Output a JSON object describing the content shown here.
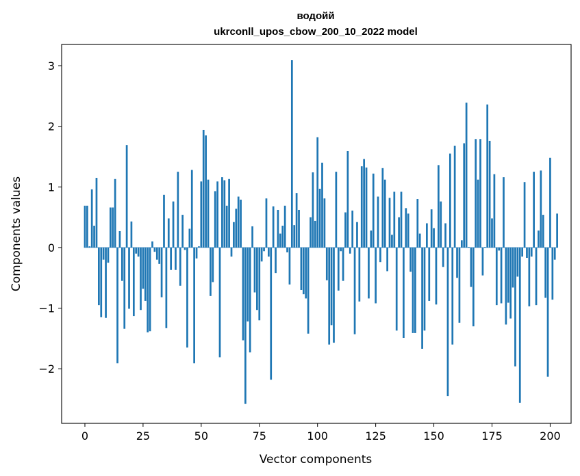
{
  "chart_data": {
    "type": "bar",
    "title": "водойй",
    "subtitle": "ukrconll_upos_cbow_200_10_2022 model",
    "xlabel": "Vector components",
    "ylabel": "Components values",
    "xlim": [
      -10,
      209
    ],
    "ylim": [
      -2.9,
      3.35
    ],
    "xticks": [
      0,
      25,
      50,
      75,
      100,
      125,
      150,
      175,
      200
    ],
    "yticks": [
      -2,
      -1,
      0,
      1,
      2,
      3
    ],
    "ytick_labels": [
      "−2",
      "−1",
      "0",
      "1",
      "2",
      "3"
    ],
    "grid": false,
    "color": "#1f77b4",
    "values": [
      0.69,
      0.69,
      0.02,
      0.96,
      0.36,
      1.15,
      -0.95,
      -1.15,
      -0.2,
      -1.16,
      -0.25,
      0.66,
      0.66,
      1.13,
      -1.91,
      0.27,
      -0.55,
      -1.34,
      1.69,
      -1.01,
      0.43,
      -1.13,
      -0.1,
      -0.15,
      -1.03,
      -0.68,
      -0.88,
      -1.4,
      -1.38,
      0.1,
      -0.07,
      -0.2,
      -0.27,
      -0.82,
      0.87,
      -1.33,
      0.48,
      -0.37,
      0.76,
      -0.37,
      1.25,
      -0.63,
      0.54,
      -0.04,
      -1.65,
      0.31,
      1.28,
      -1.91,
      -0.18,
      0.02,
      1.09,
      1.94,
      1.85,
      1.12,
      -0.8,
      -0.57,
      0.93,
      1.09,
      -1.81,
      1.16,
      1.11,
      0.69,
      1.13,
      -0.15,
      0.42,
      0.64,
      0.84,
      0.79,
      -1.53,
      -2.58,
      -1.22,
      -1.73,
      0.35,
      -0.74,
      -1.03,
      -1.2,
      -0.23,
      -0.06,
      0.81,
      -0.15,
      -2.18,
      0.68,
      -0.42,
      0.62,
      0.23,
      0.36,
      0.69,
      -0.08,
      -0.61,
      3.09,
      0.37,
      0.9,
      0.62,
      -0.7,
      -0.77,
      -0.84,
      -1.42,
      0.5,
      1.24,
      0.44,
      1.82,
      0.97,
      1.4,
      0.81,
      -0.54,
      -1.6,
      -1.28,
      -1.57,
      1.25,
      -0.71,
      -0.06,
      -0.55,
      0.58,
      1.59,
      -0.1,
      0.61,
      -1.43,
      0.42,
      -0.89,
      1.34,
      1.46,
      1.32,
      -0.84,
      0.28,
      1.22,
      -0.92,
      0.84,
      -0.24,
      1.31,
      1.12,
      -0.39,
      0.82,
      0.21,
      0.92,
      -1.37,
      0.5,
      0.92,
      -1.49,
      0.65,
      0.56,
      -0.4,
      -1.41,
      -1.41,
      0.8,
      0.23,
      -1.67,
      -1.37,
      0.4,
      -0.88,
      0.63,
      0.32,
      -0.94,
      1.36,
      0.76,
      -0.32,
      0.4,
      -2.45,
      1.55,
      -1.6,
      1.68,
      -0.5,
      -1.24,
      0.12,
      1.72,
      2.39,
      0.01,
      -0.65,
      -1.3,
      1.79,
      1.12,
      1.79,
      -0.46,
      0.01,
      2.36,
      1.76,
      0.48,
      1.21,
      -0.95,
      -0.05,
      -0.92,
      1.16,
      -1.27,
      -0.91,
      -1.17,
      -0.66,
      -1.96,
      -0.48,
      -2.56,
      -0.15,
      1.08,
      -0.17,
      -0.97,
      -0.15,
      1.25,
      -0.95,
      0.28,
      1.27,
      0.54,
      -0.83,
      -2.13,
      1.48,
      -0.86,
      -0.2,
      0.56
    ]
  }
}
